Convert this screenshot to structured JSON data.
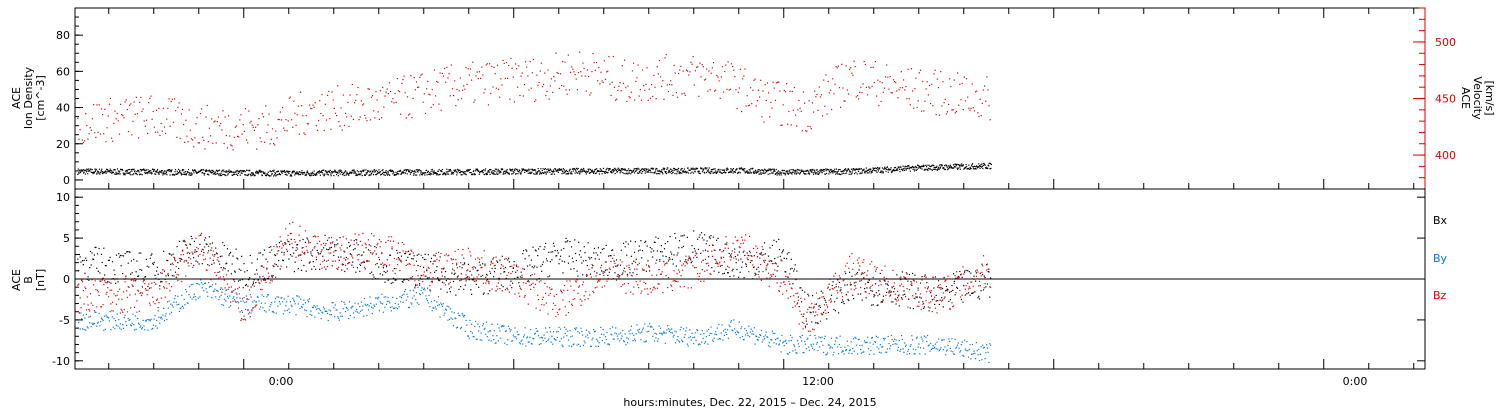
{
  "chart_data": [
    {
      "type": "scatter",
      "panel": "top",
      "ylabel_left": [
        "ACE",
        "Ion Density",
        "[cm^-3]"
      ],
      "ylabel_right": [
        "ACE",
        "Velocity",
        "[km/s]"
      ],
      "left_axis": {
        "ylim": [
          -5,
          95
        ],
        "ticks": [
          "0",
          "20",
          "40",
          "60",
          "80"
        ]
      },
      "right_axis": {
        "ylim": [
          370,
          530
        ],
        "ticks": [
          "400",
          "450",
          "500"
        ],
        "color": "#dd0000"
      },
      "x_range_hours": [
        -19.5,
        40.5
      ],
      "data_end_hour": 21.2,
      "series": [
        {
          "axis": "left",
          "color": "#000000",
          "y_mean": 5,
          "y_spread": 1.6,
          "points": [
            [
              -19,
              5
            ],
            [
              -10,
              4
            ],
            [
              0,
              5
            ],
            [
              10,
              5.5
            ],
            [
              12,
              4.5
            ],
            [
              15,
              5
            ],
            [
              18,
              7
            ],
            [
              21,
              8
            ]
          ]
        },
        {
          "axis": "right",
          "color": "#dd0000",
          "points": [
            [
              -19,
              430
            ],
            [
              -16,
              435
            ],
            [
              -14,
              425
            ],
            [
              -11,
              425
            ],
            [
              -9,
              440
            ],
            [
              -6,
              445
            ],
            [
              -3,
              460
            ],
            [
              -1,
              465
            ],
            [
              1,
              468
            ],
            [
              3,
              475
            ],
            [
              5,
              465
            ],
            [
              7,
              470
            ],
            [
              9,
              470
            ],
            [
              11,
              450
            ],
            [
              13,
              440
            ],
            [
              15,
              470
            ],
            [
              17,
              460
            ],
            [
              19,
              455
            ],
            [
              21,
              450
            ]
          ]
        }
      ]
    },
    {
      "type": "scatter",
      "panel": "bottom",
      "ylabel": [
        "ACE",
        "B",
        "[nT]"
      ],
      "ylim": [
        -11,
        11
      ],
      "ticks": [
        "-10",
        "-5",
        "0",
        "5",
        "10"
      ],
      "x_range_hours": [
        -19.5,
        40.5
      ],
      "data_end_hour": 21.2,
      "series": [
        {
          "name": "Bx",
          "color": "#000000",
          "points": [
            [
              -19,
              2
            ],
            [
              -16,
              1
            ],
            [
              -14,
              4
            ],
            [
              -12,
              1
            ],
            [
              -10,
              3
            ],
            [
              -8,
              3.5
            ],
            [
              -6,
              2
            ],
            [
              -4,
              1
            ],
            [
              -2,
              0
            ],
            [
              0,
              1
            ],
            [
              2,
              3
            ],
            [
              4,
              2
            ],
            [
              6,
              3
            ],
            [
              8,
              4
            ],
            [
              10,
              2
            ],
            [
              12,
              3
            ],
            [
              13,
              -4
            ],
            [
              15,
              -1
            ],
            [
              17,
              -1
            ],
            [
              19,
              -2
            ],
            [
              21,
              0
            ]
          ]
        },
        {
          "name": "By",
          "color": "#0077dd",
          "points": [
            [
              -19,
              -5
            ],
            [
              -16,
              -5
            ],
            [
              -14,
              -1
            ],
            [
              -12,
              -3
            ],
            [
              -10,
              -3
            ],
            [
              -8,
              -4
            ],
            [
              -6,
              -3
            ],
            [
              -4,
              -2
            ],
            [
              -2,
              -6
            ],
            [
              0,
              -7
            ],
            [
              2,
              -7
            ],
            [
              4,
              -7
            ],
            [
              6,
              -6.5
            ],
            [
              8,
              -7
            ],
            [
              10,
              -6
            ],
            [
              12,
              -8
            ],
            [
              13,
              -8
            ],
            [
              15,
              -8
            ],
            [
              17,
              -8
            ],
            [
              19,
              -8
            ],
            [
              21,
              -9
            ]
          ]
        },
        {
          "name": "Bz",
          "color": "#dd0000",
          "points": [
            [
              -19,
              -2
            ],
            [
              -16,
              -2
            ],
            [
              -14,
              4
            ],
            [
              -12,
              -4
            ],
            [
              -10,
              5
            ],
            [
              -8,
              3
            ],
            [
              -6,
              4
            ],
            [
              -4,
              1
            ],
            [
              -2,
              2
            ],
            [
              0,
              0
            ],
            [
              2,
              -3
            ],
            [
              4,
              1
            ],
            [
              6,
              0
            ],
            [
              8,
              1
            ],
            [
              10,
              4
            ],
            [
              12,
              0
            ],
            [
              13,
              -5
            ],
            [
              15,
              1
            ],
            [
              17,
              -1
            ],
            [
              19,
              -2
            ],
            [
              21,
              1
            ]
          ]
        }
      ],
      "legend": [
        "Bx",
        "By",
        "Bz"
      ]
    }
  ],
  "x_axis": {
    "tick_labels": [
      "0:00",
      "12:00",
      "0:00"
    ],
    "tick_hours": [
      0,
      12,
      24
    ],
    "xlabel": "hours:minutes, Dec. 22, 2015 – Dec. 24, 2015"
  }
}
